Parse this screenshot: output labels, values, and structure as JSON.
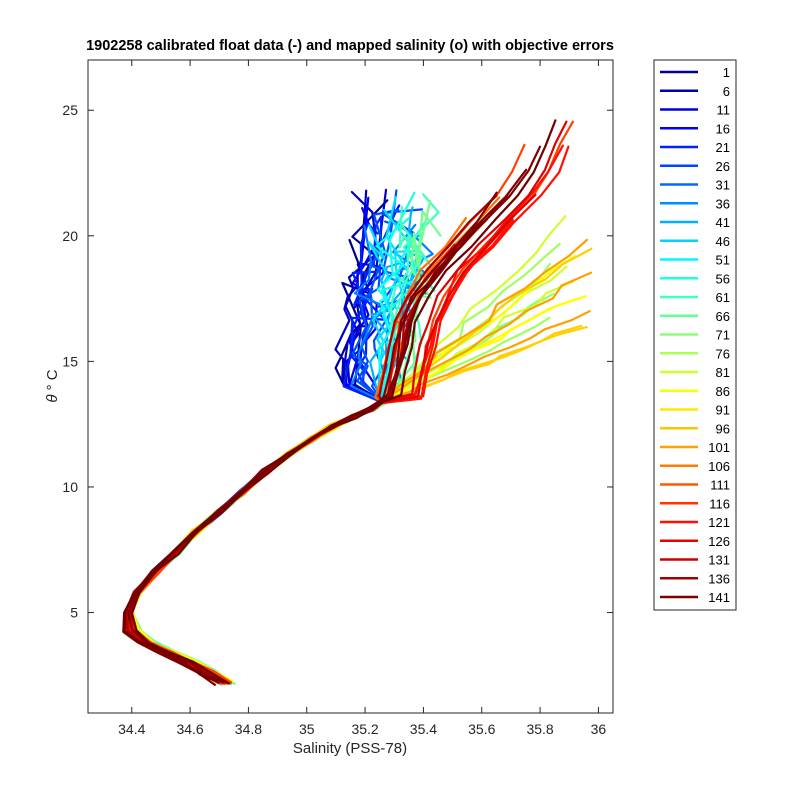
{
  "chart_data": {
    "type": "line",
    "title": "1902258 calibrated float data (-) and mapped salinity (o) with objective errors",
    "xlabel": "Salinity (PSS-78)",
    "ylabel_symbol": "θ",
    "ylabel_unit": "° C",
    "xlim": [
      34.25,
      36.05
    ],
    "ylim": [
      1.0,
      27.0
    ],
    "xticks": [
      "34.4",
      "34.6",
      "34.8",
      "35",
      "35.2",
      "35.4",
      "35.6",
      "35.8",
      "36"
    ],
    "yticks": [
      "5",
      "10",
      "15",
      "20",
      "25"
    ],
    "grid": false,
    "legend_position": "outside-right",
    "legend": [
      "1",
      "6",
      "11",
      "16",
      "21",
      "26",
      "31",
      "36",
      "41",
      "46",
      "51",
      "56",
      "61",
      "66",
      "71",
      "76",
      "81",
      "86",
      "91",
      "96",
      "101",
      "106",
      "111",
      "116",
      "121",
      "126",
      "131",
      "136",
      "141"
    ],
    "colors": [
      "#00008f",
      "#0000bf",
      "#0000ef",
      "#0020ff",
      "#0050ff",
      "#0080ff",
      "#00b0ff",
      "#00dfff",
      "#10ffef",
      "#40ffbf",
      "#70ff8f",
      "#9fff60",
      "#cfff30",
      "#ffff00",
      "#ffcf00",
      "#ff9f00",
      "#ff7000",
      "#ff4000",
      "#ff1000",
      "#df0000",
      "#af0000",
      "#800000",
      "#700000"
    ],
    "legend_colors": [
      "#00008f",
      "#0000b4",
      "#0000d8",
      "#0000fc",
      "#0020ff",
      "#0044ff",
      "#0068ff",
      "#008cff",
      "#00b0ff",
      "#00d4ff",
      "#00f8ff",
      "#1cffe3",
      "#40ffbf",
      "#64ff9b",
      "#88ff77",
      "#acff53",
      "#d0ff2f",
      "#f4ff0b",
      "#ffe800",
      "#ffc400",
      "#ffa000",
      "#ff7c00",
      "#ff5800",
      "#ff3400",
      "#ff1000",
      "#eb0000",
      "#c70000",
      "#a30000",
      "#800000"
    ],
    "deep_profile_salinity": [
      34.72,
      34.66,
      34.6,
      34.52,
      34.45,
      34.4,
      34.39,
      34.42,
      34.48,
      34.55,
      34.62,
      34.7,
      34.78,
      34.86,
      34.94,
      35.02,
      35.09,
      35.16,
      35.22,
      35.26
    ],
    "deep_profile_theta": [
      2.2,
      2.6,
      3.0,
      3.4,
      3.8,
      4.3,
      5.0,
      5.8,
      6.6,
      7.4,
      8.2,
      9.0,
      9.8,
      10.6,
      11.3,
      11.9,
      12.4,
      12.8,
      13.1,
      13.4
    ],
    "surface_mode_salinity": [
      35.28,
      35.3,
      35.32,
      35.34,
      35.38,
      35.44,
      35.52,
      35.6,
      35.68,
      35.74,
      35.78,
      35.82
    ],
    "surface_mode_theta": [
      13.6,
      14.6,
      15.6,
      16.6,
      17.6,
      18.6,
      19.6,
      20.6,
      21.6,
      22.6,
      23.6,
      24.6
    ]
  }
}
